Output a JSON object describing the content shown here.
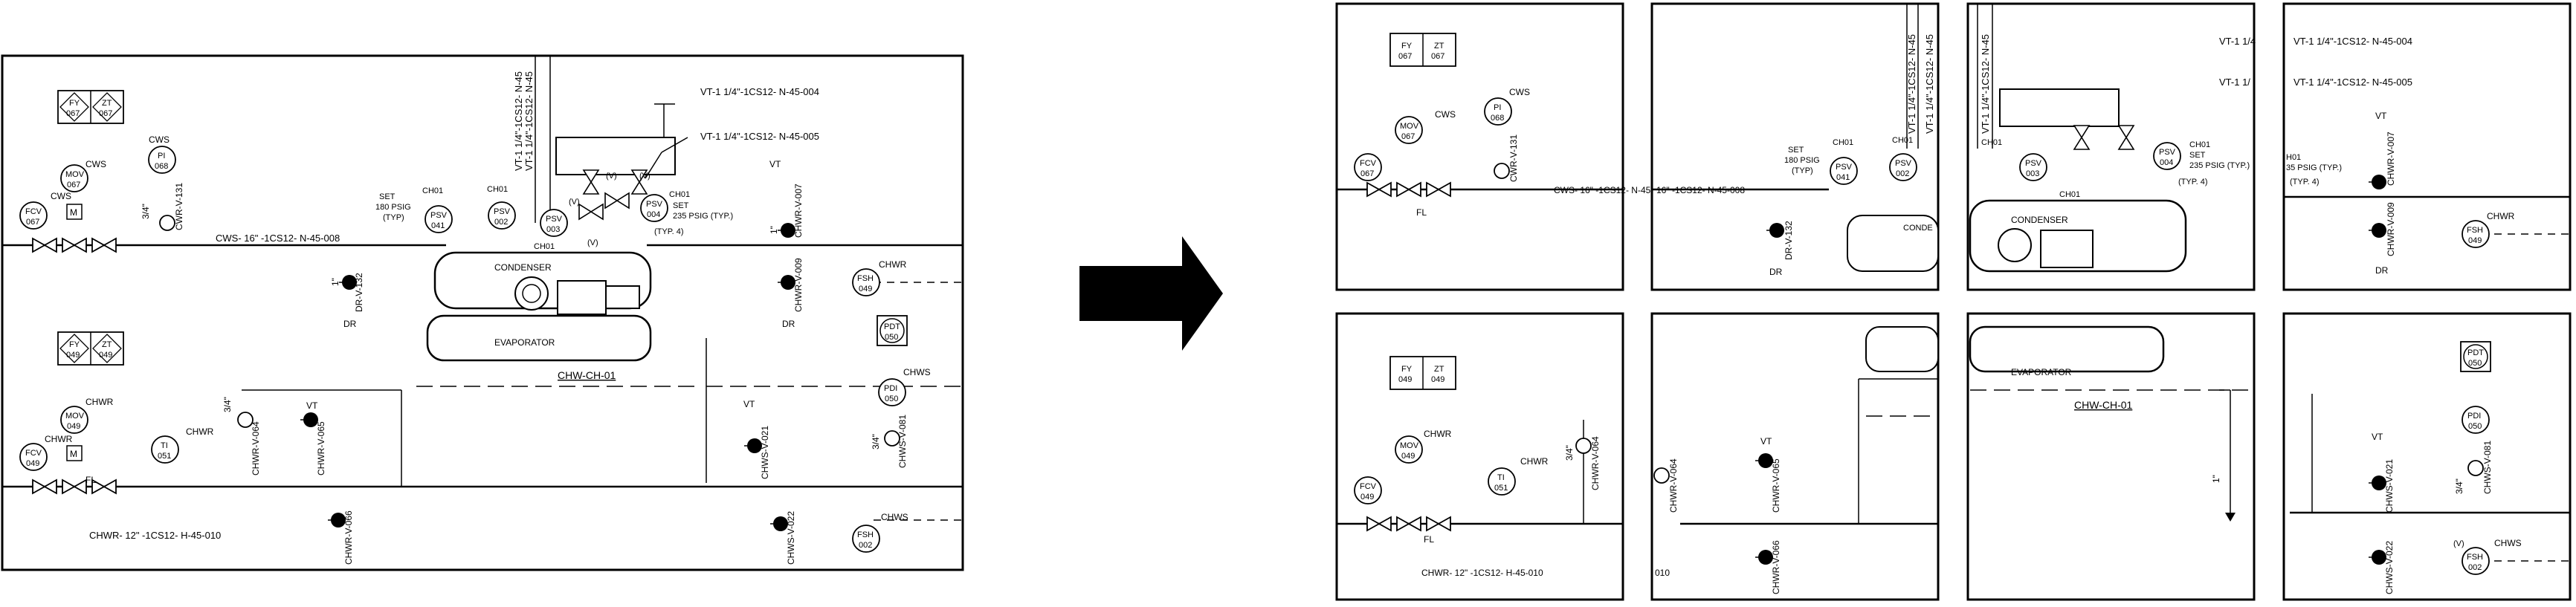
{
  "figure": {
    "arrow_icon": "right-arrow-icon",
    "tiles_layout": "2 rows x 4 columns"
  },
  "diagram": {
    "pipes": {
      "cws_main": "CWS- 16\" -1CS12- N-45-008",
      "chwr_main": "CHWR- 12\" -1CS12- H-45-010",
      "vt_line_1": "VT-1 1/4\"-1CS12- N-45-004",
      "vt_line_2": "VT-1 1/4\"-1CS12- N-45-005"
    },
    "equipment": {
      "condenser": "CONDENSER",
      "evaporator": "EVAPORATOR",
      "tag": "CHW-CH-01"
    },
    "set_notes": {
      "left": [
        "SET",
        "180 PSIG",
        "(TYP)"
      ],
      "right": [
        "SET",
        "235 PSIG (TYP.)",
        "(TYP. 4)"
      ]
    },
    "labels": {
      "cws": "CWS",
      "chwr": "CHWR",
      "chws": "CHWS",
      "ch01": "CH01",
      "vt": "VT",
      "dr": "DR",
      "fl": "FL",
      "v": "(V)",
      "m": "M",
      "size_3_4": "3/4\"",
      "size_1": "1\""
    },
    "instruments": {
      "fy": "FY",
      "zt": "ZT",
      "fy067": "067",
      "zt067": "067",
      "fy049": "049",
      "zt049": "049",
      "pi068": [
        "PI",
        "068"
      ],
      "mov067": [
        "MOV",
        "067"
      ],
      "fcv067": [
        "FCV",
        "067"
      ],
      "mov049": [
        "MOV",
        "049"
      ],
      "fcv049": [
        "FCV",
        "049"
      ],
      "ti051": [
        "TI",
        "051"
      ],
      "psv041": [
        "PSV",
        "041"
      ],
      "psv002": [
        "PSV",
        "002"
      ],
      "psv003": [
        "PSV",
        "003"
      ],
      "psv004": [
        "PSV",
        "004"
      ],
      "fsh049": [
        "FSH",
        "049"
      ],
      "fsh002": [
        "FSH",
        "002"
      ],
      "pdi050": [
        "PDI",
        "050"
      ],
      "pdt050": [
        "PDT",
        "050"
      ]
    },
    "valves": {
      "cwr_v_131": "CWR-V-131",
      "dr_v_132": "DR-V-132",
      "chwr_v_007": "CHWR-V-007",
      "chwr_v_009": "CHWR-V-009",
      "chwr_v_064": "CHWR-V-064",
      "chwr_v_065": "CHWR-V-065",
      "chwr_v_066": "CHWR-V-066",
      "chws_v_021": "CHWS-V-021",
      "chws_v_022": "CHWS-V-022",
      "chws_v_081": "CHWS-V-081"
    },
    "tile_fragments": {
      "cws_tail": "16\" -1CS12- N-45-008",
      "chwr_tail": "010",
      "vt_trunc_1": "VT-1 1/4",
      "vt_trunc_2": "VT-1 1/",
      "vt_full_1": "VT-1 1/4\"-1CS12- N-45-004",
      "vt_full_2": "VT-1 1/4\"-1CS12- N-45-005",
      "vertical_trunc": "VT-1 1/4\"-1CS12- N-45",
      "set_trunc": "35 PSIG (TYP.)",
      "ch01_trunc": "H01",
      "cond_trunc": "CONDE",
      "cond_trunc2": "CONDEN"
    }
  }
}
